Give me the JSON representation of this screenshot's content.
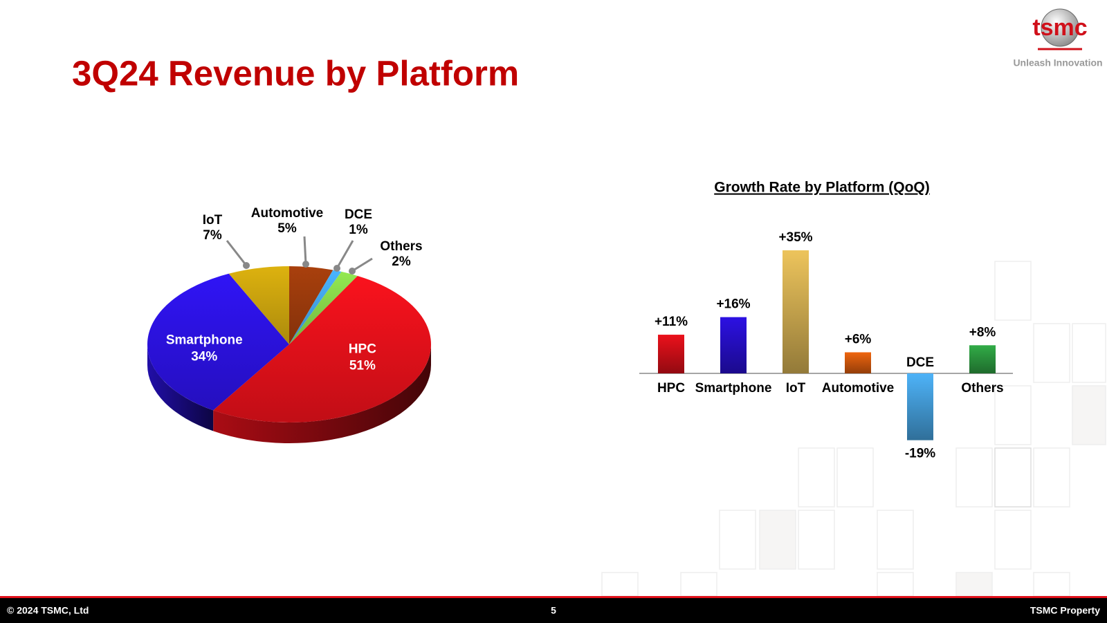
{
  "header": {
    "title": "3Q24 Revenue by Platform"
  },
  "logo": {
    "name": "tsmc",
    "tagline": "Unleash Innovation"
  },
  "footer": {
    "copyright": "© 2024 TSMC, Ltd",
    "page": "5",
    "property": "TSMC Property"
  },
  "chart_data": [
    {
      "type": "pie",
      "categories": [
        "HPC",
        "Smartphone",
        "IoT",
        "Automotive",
        "DCE",
        "Others"
      ],
      "values": [
        51,
        34,
        7,
        5,
        1,
        2
      ],
      "value_labels": [
        "51%",
        "34%",
        "7%",
        "5%",
        "1%",
        "2%"
      ],
      "colors": [
        "#e3101a",
        "#2c12e0",
        "#c9a20e",
        "#9a3a0c",
        "#42a4ea",
        "#86d44a"
      ]
    },
    {
      "type": "bar",
      "title": "Growth Rate by Platform (QoQ)",
      "categories": [
        "HPC",
        "Smartphone",
        "IoT",
        "Automotive",
        "DCE",
        "Others"
      ],
      "values": [
        11,
        16,
        35,
        6,
        -19,
        8
      ],
      "value_labels": [
        "+11%",
        "+16%",
        "+35%",
        "+6%",
        "-19%",
        "+8%"
      ],
      "colors": [
        "#e0101a",
        "#2a10d8",
        "#e2bb58",
        "#e4600e",
        "#4aaaec",
        "#2fa444"
      ]
    }
  ]
}
